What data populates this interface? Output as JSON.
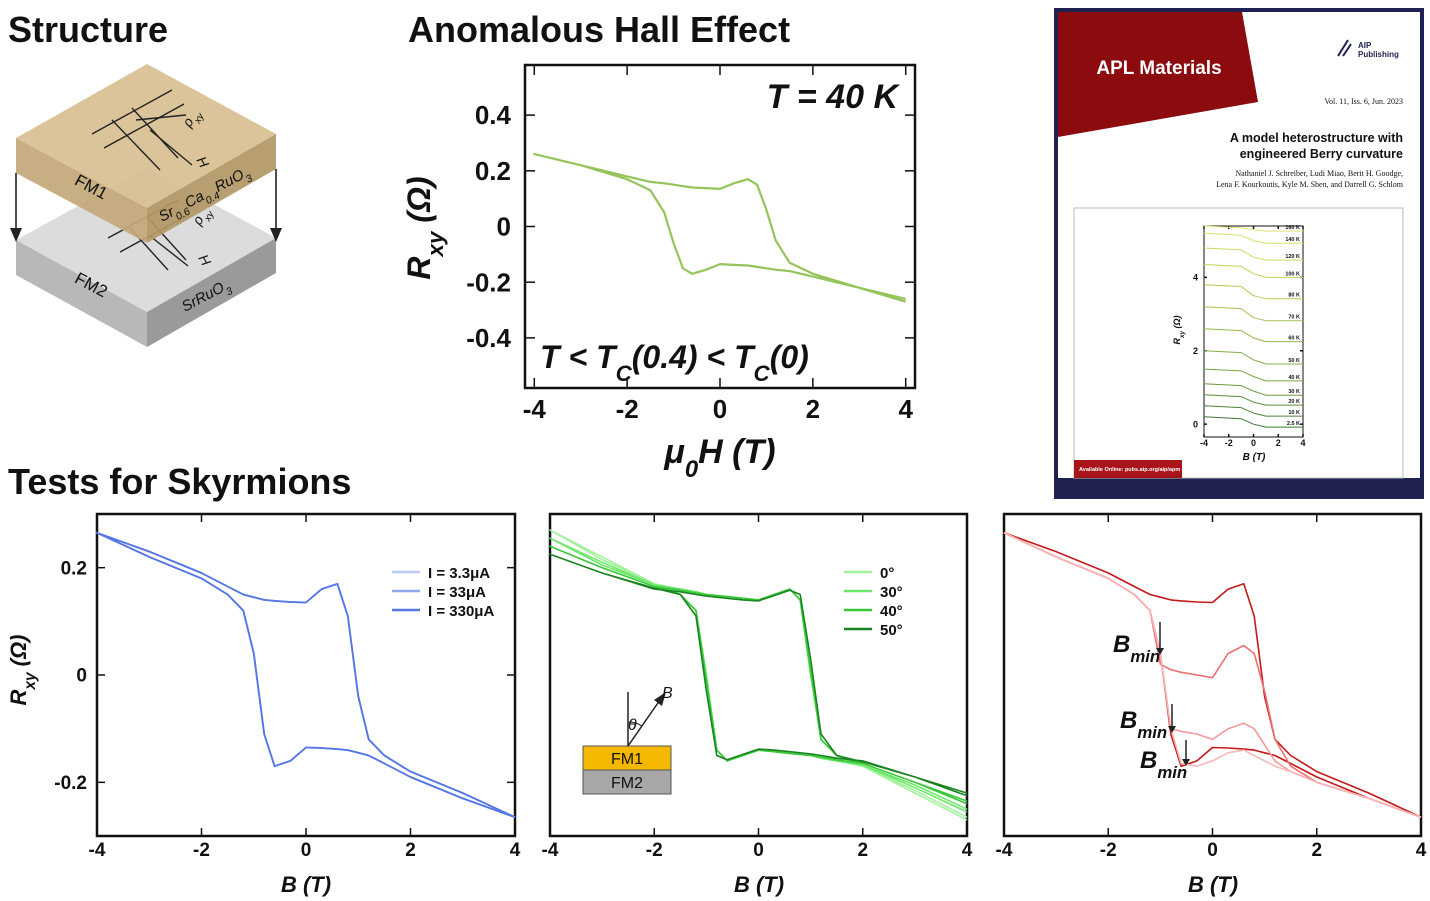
{
  "structure": {
    "title": "Structure",
    "layers": [
      {
        "label": "FM1",
        "material": [
          "Sr",
          "0.6",
          "Ca",
          "0.4",
          "RuO",
          "3"
        ]
      },
      {
        "label": "FM2",
        "material": [
          "SrRuO",
          "3"
        ]
      }
    ],
    "contacts": [
      [
        "ρ",
        "xy"
      ],
      [
        "H"
      ]
    ]
  },
  "headings": [
    "Tests for Skyrmions"
  ],
  "cover": {
    "journal": "APL Materials",
    "publisher": [
      "AIP",
      "Publishing"
    ],
    "issue": "Vol. 11, Iss. 6, Jun. 2023",
    "title_lines": [
      "A model heterostructure with",
      "engineered Berry curvature"
    ],
    "author_lines": [
      "Nathaniel J. Schreiber, Ludi Miao, Berit H. Goodge,",
      "Lena F. Kourkoutis, Kyle M. Shen, and Darrell G. Schlom"
    ],
    "footer": "Available Online: pubs.aip.org/aip/apm"
  },
  "chart_data": [
    {
      "type": "line",
      "title": "Anomalous Hall Effect",
      "x_label": [
        "μ",
        "0",
        "H (T)"
      ],
      "y_label": [
        "R",
        "xy",
        " (Ω)"
      ],
      "xlim": [
        -4.2,
        4.2
      ],
      "ylim": [
        -0.58,
        0.58
      ],
      "xticks": [
        -4,
        -2,
        0,
        2,
        4
      ],
      "yticks": [
        -0.4,
        -0.2,
        0,
        0.2,
        0.4
      ],
      "annotations": [
        [
          "T = 40 K"
        ],
        [
          "T < T",
          "C",
          "(0.4) < T",
          "C",
          "(0)"
        ]
      ],
      "x": [
        4,
        3,
        2,
        1.5,
        1.2,
        1,
        0.8,
        0.6,
        0.3,
        0,
        -0.3,
        -0.6,
        -0.8,
        -1,
        -1.2,
        -1.5,
        -2,
        -3,
        -4,
        -3,
        -2,
        -1.5,
        -1.2,
        -1,
        -0.8,
        -0.6,
        -0.3,
        0,
        0.3,
        0.6,
        0.8,
        1,
        1.2,
        1.5,
        2,
        3,
        4
      ],
      "series": [
        {
          "color": "#94c45a",
          "values": [
            -0.27,
            -0.22,
            -0.18,
            -0.16,
            -0.155,
            -0.15,
            -0.145,
            -0.14,
            -0.138,
            -0.135,
            -0.155,
            -0.17,
            -0.15,
            -0.06,
            0.05,
            0.13,
            0.17,
            0.22,
            0.26,
            0.22,
            0.18,
            0.16,
            0.155,
            0.15,
            0.145,
            0.14,
            0.138,
            0.135,
            0.155,
            0.17,
            0.15,
            0.06,
            -0.05,
            -0.13,
            -0.17,
            -0.22,
            -0.26
          ]
        }
      ]
    },
    {
      "type": "line",
      "x_label": [
        "B (T)"
      ],
      "y_label": [
        "R",
        "xy",
        " (Ω)"
      ],
      "xlim": [
        -4,
        4
      ],
      "ylim": [
        -0.3,
        0.3
      ],
      "xticks": [
        -4,
        -2,
        0,
        2,
        4
      ],
      "yticks": [
        -0.2,
        0,
        0.2
      ],
      "legend": "upper right",
      "x": [
        4,
        3,
        2,
        1.5,
        1.2,
        1,
        0.8,
        0.6,
        0.3,
        0,
        -0.3,
        -0.6,
        -0.8,
        -1,
        -1.2,
        -1.5,
        -2,
        -3,
        -4,
        -3,
        -2,
        -1.5,
        -1.2,
        -1,
        -0.8,
        -0.6,
        -0.3,
        0,
        0.3,
        0.6,
        0.8,
        1,
        1.2,
        1.5,
        2,
        3,
        4
      ],
      "series": [
        {
          "name": "I = 3.3μA",
          "color": "#b9c8f5",
          "values": [
            -0.265,
            -0.23,
            -0.19,
            -0.165,
            -0.15,
            -0.145,
            -0.14,
            -0.138,
            -0.136,
            -0.135,
            -0.16,
            -0.17,
            -0.11,
            0.04,
            0.12,
            0.15,
            0.18,
            0.22,
            0.265,
            0.23,
            0.19,
            0.165,
            0.15,
            0.145,
            0.14,
            0.138,
            0.136,
            0.135,
            0.16,
            0.17,
            0.11,
            -0.04,
            -0.12,
            -0.15,
            -0.18,
            -0.22,
            -0.265
          ]
        },
        {
          "name": "I = 33μA",
          "color": "#8fa8ef",
          "values": [
            -0.265,
            -0.23,
            -0.19,
            -0.165,
            -0.15,
            -0.145,
            -0.14,
            -0.138,
            -0.136,
            -0.135,
            -0.16,
            -0.17,
            -0.11,
            0.04,
            0.12,
            0.15,
            0.18,
            0.22,
            0.265,
            0.23,
            0.19,
            0.165,
            0.15,
            0.145,
            0.14,
            0.138,
            0.136,
            0.135,
            0.16,
            0.17,
            0.11,
            -0.04,
            -0.12,
            -0.15,
            -0.18,
            -0.22,
            -0.265
          ]
        },
        {
          "name": "I = 330μA",
          "color": "#5577e6",
          "values": [
            -0.265,
            -0.23,
            -0.19,
            -0.165,
            -0.15,
            -0.145,
            -0.14,
            -0.138,
            -0.136,
            -0.135,
            -0.16,
            -0.17,
            -0.11,
            0.04,
            0.12,
            0.15,
            0.18,
            0.22,
            0.265,
            0.23,
            0.19,
            0.165,
            0.15,
            0.145,
            0.14,
            0.138,
            0.136,
            0.135,
            0.16,
            0.17,
            0.11,
            -0.04,
            -0.12,
            -0.15,
            -0.18,
            -0.22,
            -0.265
          ]
        }
      ]
    },
    {
      "type": "line",
      "x_label": [
        "B (T)"
      ],
      "xlim": [
        -4,
        4
      ],
      "ylim": [
        -0.3,
        0.3
      ],
      "xticks": [
        -4,
        -2,
        0,
        2,
        4
      ],
      "legend": "upper right",
      "inset": {
        "layers": [
          "FM1",
          "FM2"
        ],
        "angle": "θ",
        "field": "B"
      },
      "x": [
        4,
        3,
        2,
        1.5,
        1.2,
        1,
        0.8,
        0.6,
        0.3,
        0,
        -0.3,
        -0.6,
        -0.8,
        -1,
        -1.2,
        -1.5,
        -2,
        -3,
        -4,
        -3,
        -2,
        -1.5,
        -1.2,
        -1,
        -0.8,
        -0.6,
        -0.3,
        0,
        0.3,
        0.6,
        0.8,
        1,
        1.2,
        1.5,
        2,
        3,
        4
      ],
      "series": [
        {
          "name": "0°",
          "color": "#a2f29c",
          "values": [
            -0.265,
            -0.215,
            -0.17,
            -0.16,
            -0.155,
            -0.15,
            -0.148,
            -0.146,
            -0.143,
            -0.14,
            -0.15,
            -0.16,
            -0.14,
            0.0,
            0.12,
            0.15,
            0.17,
            0.22,
            0.27,
            0.215,
            0.17,
            0.16,
            0.155,
            0.15,
            0.148,
            0.146,
            0.143,
            0.14,
            0.15,
            0.16,
            0.14,
            0.0,
            -0.12,
            -0.15,
            -0.17,
            -0.22,
            -0.27
          ]
        },
        {
          "name": "30°",
          "color": "#6de86a",
          "values": [
            -0.25,
            -0.205,
            -0.168,
            -0.16,
            -0.155,
            -0.15,
            -0.148,
            -0.146,
            -0.143,
            -0.14,
            -0.15,
            -0.16,
            -0.14,
            0.0,
            0.12,
            0.15,
            0.168,
            0.21,
            0.255,
            0.205,
            0.168,
            0.16,
            0.155,
            0.15,
            0.148,
            0.146,
            0.143,
            0.14,
            0.15,
            0.16,
            0.14,
            0.0,
            -0.12,
            -0.15,
            -0.168,
            -0.21,
            -0.255
          ]
        },
        {
          "name": "40°",
          "color": "#38c838",
          "values": [
            -0.235,
            -0.2,
            -0.165,
            -0.158,
            -0.153,
            -0.15,
            -0.148,
            -0.146,
            -0.143,
            -0.14,
            -0.15,
            -0.16,
            -0.14,
            -0.01,
            0.12,
            0.15,
            0.165,
            0.2,
            0.24,
            0.2,
            0.165,
            0.158,
            0.153,
            0.15,
            0.148,
            0.146,
            0.143,
            0.14,
            0.15,
            0.16,
            0.14,
            0.01,
            -0.12,
            -0.15,
            -0.165,
            -0.2,
            -0.24
          ]
        },
        {
          "name": "50°",
          "color": "#1a8420",
          "values": [
            -0.22,
            -0.19,
            -0.16,
            -0.155,
            -0.15,
            -0.147,
            -0.145,
            -0.143,
            -0.14,
            -0.138,
            -0.148,
            -0.158,
            -0.15,
            -0.03,
            0.11,
            0.15,
            0.162,
            0.19,
            0.225,
            0.19,
            0.16,
            0.155,
            0.15,
            0.147,
            0.145,
            0.143,
            0.14,
            0.138,
            0.148,
            0.158,
            0.15,
            0.03,
            -0.11,
            -0.15,
            -0.162,
            -0.19,
            -0.225
          ]
        }
      ]
    },
    {
      "type": "line",
      "x_label": [
        "B (T)"
      ],
      "xlim": [
        -4,
        4
      ],
      "ylim": [
        -0.3,
        0.3
      ],
      "xticks": [
        -4,
        -2,
        0,
        2,
        4
      ],
      "annotations": [
        [
          "B",
          "min"
        ],
        [
          "B",
          "min"
        ],
        [
          "B",
          "min"
        ]
      ],
      "series": [
        {
          "color": "#c41a1a",
          "x": [
            4,
            3,
            2,
            1.5,
            1.2,
            1,
            0.8,
            0.6,
            0.3,
            0,
            -0.3,
            -0.6,
            -0.8,
            -1,
            -1.2,
            -1.5,
            -2,
            -3,
            -4,
            -3,
            -2,
            -1.5,
            -1.2,
            -1,
            -0.8,
            -0.6,
            -0.3,
            0,
            0.3,
            0.6,
            0.8,
            1,
            1.2,
            1.5,
            2,
            3,
            4
          ],
          "values": [
            -0.265,
            -0.23,
            -0.19,
            -0.165,
            -0.15,
            -0.145,
            -0.14,
            -0.138,
            -0.136,
            -0.135,
            -0.16,
            -0.17,
            -0.11,
            0.04,
            0.12,
            0.15,
            0.18,
            0.22,
            0.265,
            0.23,
            0.19,
            0.165,
            0.15,
            0.145,
            0.14,
            0.138,
            0.136,
            0.135,
            0.16,
            0.17,
            0.11,
            -0.04,
            -0.12,
            -0.15,
            -0.18,
            -0.22,
            -0.265
          ]
        },
        {
          "color": "#ee7070",
          "x": [
            -4,
            -3,
            -2,
            -1.5,
            -1.2,
            -1,
            -0.8,
            -0.6,
            -0.3,
            0,
            0.3,
            0.6,
            0.8,
            1,
            1.2,
            1.5,
            2,
            3,
            4
          ],
          "values": [
            0.265,
            0.22,
            0.18,
            0.15,
            0.12,
            0.02,
            0.01,
            0.005,
            0.0,
            -0.005,
            0.04,
            0.055,
            0.04,
            -0.03,
            -0.12,
            -0.17,
            -0.2,
            -0.23,
            -0.265
          ]
        },
        {
          "color": "#f39a9a",
          "x": [
            -4,
            -3,
            -2,
            -1.5,
            -1.2,
            -1,
            -0.8,
            -0.6,
            -0.3,
            0,
            0.3,
            0.6,
            0.8,
            1,
            1.2,
            1.5,
            2,
            3,
            4
          ],
          "values": [
            0.265,
            0.22,
            0.18,
            0.15,
            0.12,
            0.04,
            -0.1,
            -0.105,
            -0.11,
            -0.12,
            -0.1,
            -0.09,
            -0.1,
            -0.13,
            -0.16,
            -0.18,
            -0.2,
            -0.23,
            -0.265
          ]
        },
        {
          "color": "#f7b7b7",
          "x": [
            -4,
            -3,
            -2,
            -1.5,
            -1.2,
            -1,
            -0.8,
            -0.6,
            -0.3,
            0,
            0.3,
            0.6,
            0.8,
            1,
            1.2,
            1.5,
            2,
            3,
            4
          ],
          "values": [
            0.265,
            0.22,
            0.18,
            0.15,
            0.12,
            0.04,
            -0.1,
            -0.165,
            -0.17,
            -0.16,
            -0.145,
            -0.14,
            -0.15,
            -0.16,
            -0.17,
            -0.18,
            -0.2,
            -0.23,
            -0.265
          ]
        }
      ]
    },
    {
      "type": "line",
      "x_label": [
        "B (T)"
      ],
      "y_label": [
        "R",
        "xy",
        " (Ω)"
      ],
      "xlim": [
        -4,
        4
      ],
      "ylim": [
        -0.35,
        5.4
      ],
      "xticks": [
        -4,
        -2,
        0,
        2,
        4
      ],
      "yticks": [
        0,
        2,
        4
      ],
      "legend": "inline",
      "x": [
        -4,
        -1,
        0,
        1,
        4
      ],
      "series": [
        {
          "name": "160 K",
          "color": "#e2e572",
          "values": [
            5.4,
            5.35,
            5.3,
            5.26,
            5.26
          ]
        },
        {
          "name": "140 K",
          "color": "#d9e16a",
          "values": [
            5.2,
            5.15,
            5.0,
            4.93,
            4.93
          ]
        },
        {
          "name": "120 K",
          "color": "#cddb63",
          "values": [
            4.8,
            4.75,
            4.55,
            4.47,
            4.47
          ]
        },
        {
          "name": "100 K",
          "color": "#c0d45c",
          "values": [
            4.35,
            4.3,
            4.1,
            4.0,
            4.0
          ]
        },
        {
          "name": "80 K",
          "color": "#b2cc56",
          "values": [
            3.8,
            3.75,
            3.5,
            3.42,
            3.42
          ]
        },
        {
          "name": "70 K",
          "color": "#a4c350",
          "values": [
            3.2,
            3.15,
            2.9,
            2.82,
            2.82
          ]
        },
        {
          "name": "60 K",
          "color": "#96ba4b",
          "values": [
            2.6,
            2.55,
            2.35,
            2.25,
            2.25
          ]
        },
        {
          "name": "50 K",
          "color": "#87b046",
          "values": [
            2.0,
            1.95,
            1.75,
            1.64,
            1.64
          ]
        },
        {
          "name": "40 K",
          "color": "#78a642",
          "values": [
            1.5,
            1.45,
            1.3,
            1.18,
            1.18
          ]
        },
        {
          "name": "30 K",
          "color": "#699b3e",
          "values": [
            1.1,
            1.05,
            0.9,
            0.79,
            0.79
          ]
        },
        {
          "name": "20 K",
          "color": "#5a8f3b",
          "values": [
            0.8,
            0.75,
            0.6,
            0.52,
            0.52
          ]
        },
        {
          "name": "10 K",
          "color": "#4b8338",
          "values": [
            0.5,
            0.45,
            0.3,
            0.22,
            0.22
          ]
        },
        {
          "name": "2.5 K",
          "color": "#3d7836",
          "values": [
            0.2,
            0.15,
            0.0,
            -0.08,
            -0.08
          ]
        }
      ]
    }
  ]
}
